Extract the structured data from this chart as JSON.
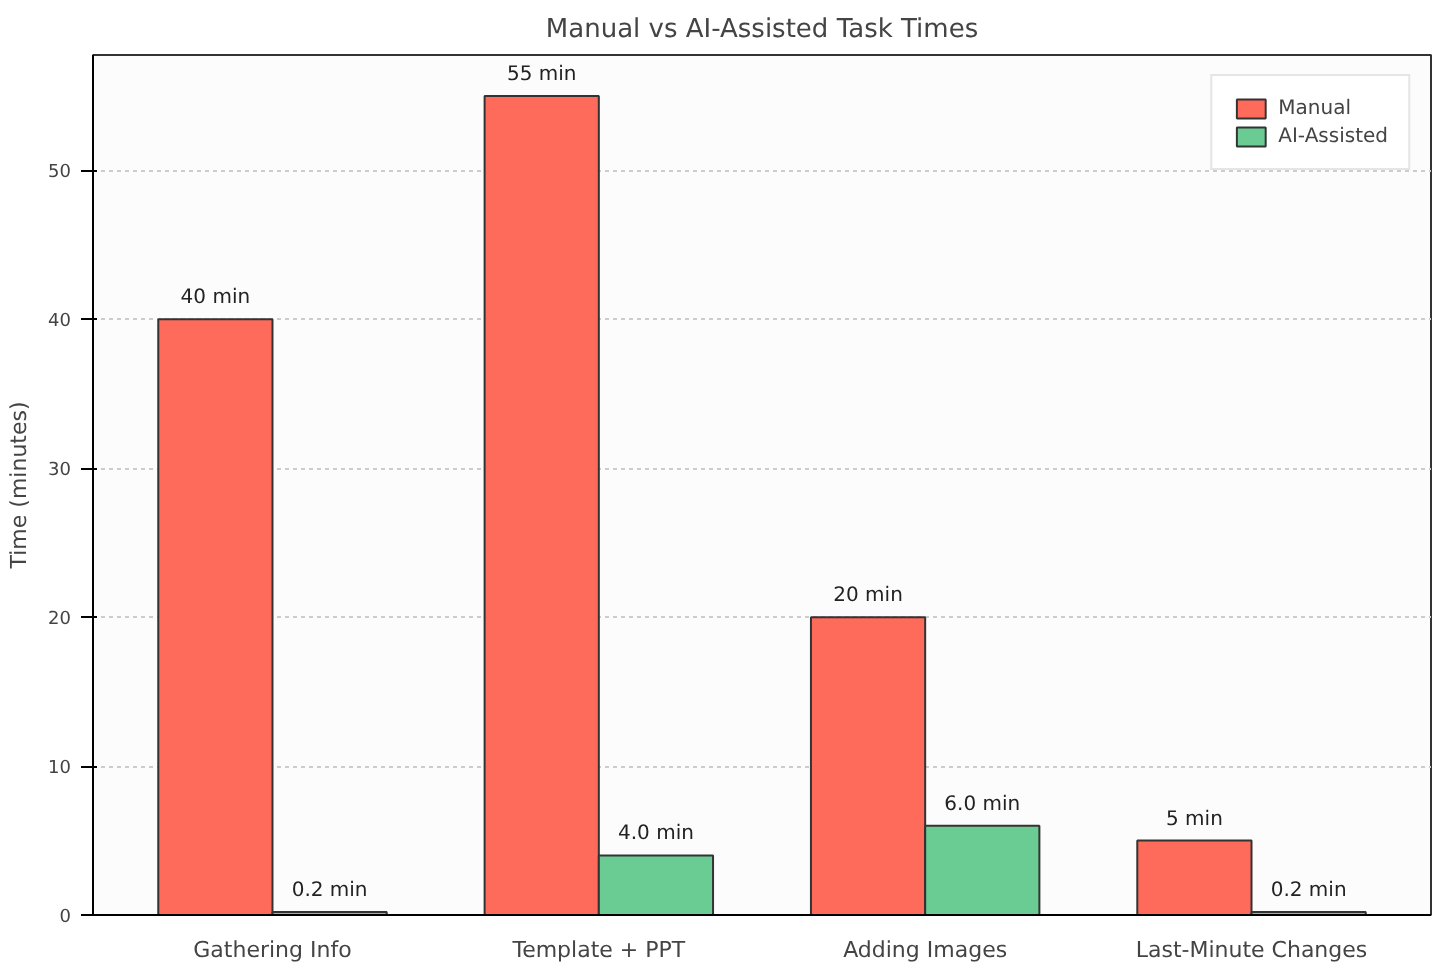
{
  "chart_data": {
    "type": "bar",
    "title": "Manual vs AI-Assisted Task Times",
    "ylabel": "Time (minutes)",
    "categories": [
      "Gathering Info",
      "Template + PPT",
      "Adding Images",
      "Last-Minute Changes"
    ],
    "series": [
      {
        "name": "Manual",
        "color": "#ff6b5b",
        "values": [
          40,
          55,
          20,
          5
        ],
        "value_labels": [
          "40 min",
          "55 min",
          "20 min",
          "5 min"
        ]
      },
      {
        "name": "AI-Assisted",
        "color": "#6acc93",
        "values": [
          0.2,
          4.0,
          6.0,
          0.2
        ],
        "value_labels": [
          "0.2 min",
          "4.0 min",
          "6.0 min",
          "0.2 min"
        ]
      }
    ],
    "ylim": [
      0,
      57.75
    ],
    "yticks": [
      0,
      10,
      20,
      30,
      40,
      50
    ],
    "grid": "y",
    "legend": "top right"
  }
}
